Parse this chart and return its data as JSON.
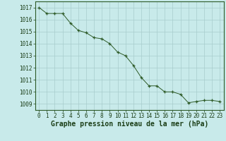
{
  "x": [
    0,
    1,
    2,
    3,
    4,
    5,
    6,
    7,
    8,
    9,
    10,
    11,
    12,
    13,
    14,
    15,
    16,
    17,
    18,
    19,
    20,
    21,
    22,
    23
  ],
  "y": [
    1017.0,
    1016.5,
    1016.5,
    1016.5,
    1015.7,
    1015.1,
    1014.9,
    1014.5,
    1014.4,
    1014.0,
    1013.3,
    1013.0,
    1012.2,
    1011.2,
    1010.5,
    1010.5,
    1010.0,
    1010.0,
    1009.8,
    1009.1,
    1009.2,
    1009.3,
    1009.3,
    1009.2
  ],
  "ylim": [
    1008.5,
    1017.5
  ],
  "xlim": [
    -0.5,
    23.5
  ],
  "yticks": [
    1009,
    1010,
    1011,
    1012,
    1013,
    1014,
    1015,
    1016,
    1017
  ],
  "xticks": [
    0,
    1,
    2,
    3,
    4,
    5,
    6,
    7,
    8,
    9,
    10,
    11,
    12,
    13,
    14,
    15,
    16,
    17,
    18,
    19,
    20,
    21,
    22,
    23
  ],
  "xlabel": "Graphe pression niveau de la mer (hPa)",
  "line_color": "#2d5a27",
  "marker_color": "#2d5a27",
  "bg_color": "#c8eaea",
  "grid_color": "#a8cccc",
  "axis_color": "#2d5a27",
  "text_color": "#1a3d16",
  "tick_fontsize": 5.5,
  "xlabel_fontsize": 7.0
}
